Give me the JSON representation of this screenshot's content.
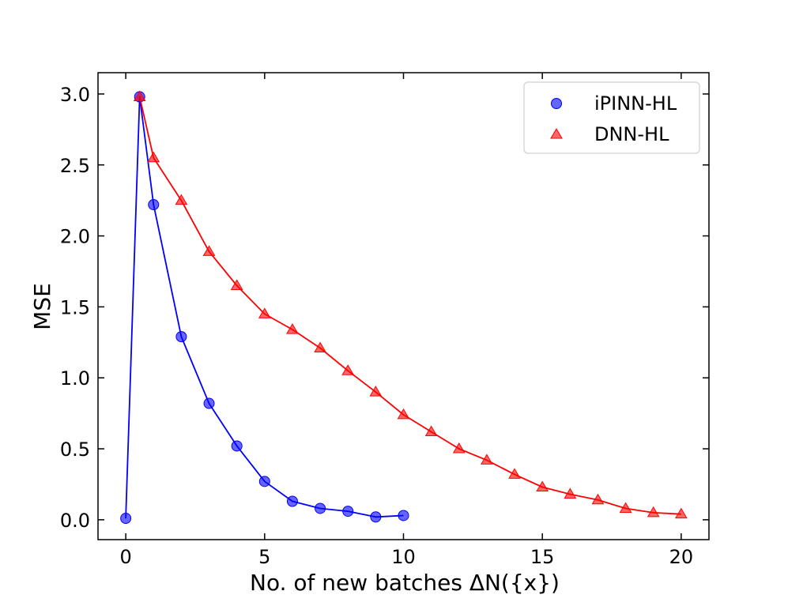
{
  "chart_data": {
    "type": "line",
    "xlabel": "No. of new batches ΔN({x})",
    "ylabel": "MSE",
    "xlim": [
      -1,
      21
    ],
    "ylim": [
      -0.14,
      3.15
    ],
    "xticks": [
      0,
      5,
      10,
      15,
      20
    ],
    "xtick_labels": [
      "0",
      "5",
      "10",
      "15",
      "20"
    ],
    "yticks": [
      0.0,
      0.5,
      1.0,
      1.5,
      2.0,
      2.5,
      3.0
    ],
    "ytick_labels": [
      "0.0",
      "0.5",
      "1.0",
      "1.5",
      "2.0",
      "2.5",
      "3.0"
    ],
    "grid": false,
    "legend_position": "top-right",
    "series": [
      {
        "name": "iPINN-HL",
        "color": "#0000ff",
        "marker": "circle",
        "x": [
          0,
          0.5,
          1,
          2,
          3,
          4,
          5,
          6,
          7,
          8,
          9,
          10
        ],
        "y": [
          0.01,
          2.98,
          2.22,
          1.29,
          0.82,
          0.52,
          0.27,
          0.13,
          0.08,
          0.06,
          0.02,
          0.03
        ]
      },
      {
        "name": "DNN-HL",
        "color": "#ff0000",
        "marker": "triangle",
        "x": [
          0.5,
          1,
          2,
          3,
          4,
          5,
          6,
          7,
          8,
          9,
          10,
          11,
          12,
          13,
          14,
          15,
          16,
          17,
          18,
          19,
          20
        ],
        "y": [
          2.98,
          2.55,
          2.25,
          1.89,
          1.65,
          1.45,
          1.34,
          1.21,
          1.05,
          0.9,
          0.74,
          0.62,
          0.5,
          0.42,
          0.32,
          0.23,
          0.18,
          0.14,
          0.08,
          0.05,
          0.04
        ]
      }
    ]
  }
}
